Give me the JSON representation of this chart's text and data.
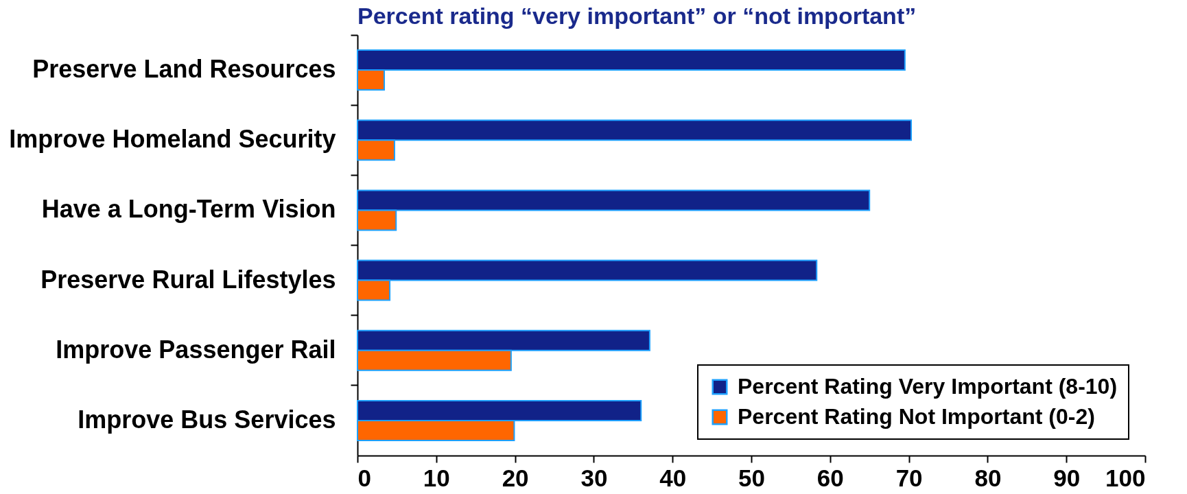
{
  "chart_data": {
    "type": "bar",
    "orientation": "horizontal",
    "title": "Percent rating “very important” or “not important”",
    "categories": [
      "Preserve Land Resources",
      "Improve Homeland Security",
      "Have a Long-Term Vision",
      "Preserve Rural Lifestyles",
      "Improve Passenger Rail",
      "Improve Bus Services"
    ],
    "series": [
      {
        "name": "Percent Rating Very Important (8-10)",
        "color": "#112288",
        "values": [
          69.5,
          70.3,
          65.0,
          58.3,
          37.1,
          36.0
        ]
      },
      {
        "name": "Percent Rating Not Important (0-2)",
        "color": "#ff6600",
        "values": [
          3.4,
          4.7,
          4.9,
          4.1,
          19.5,
          19.9
        ]
      }
    ],
    "xlim": [
      0,
      100
    ],
    "xticks": [
      0,
      10,
      20,
      30,
      40,
      50,
      60,
      70,
      80,
      90,
      100
    ],
    "legend": "bottom right"
  }
}
